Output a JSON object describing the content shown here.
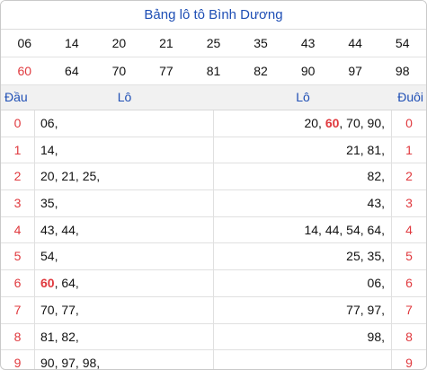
{
  "title": "Bảng lô tô Bình Dương",
  "numbers_row1": [
    "06",
    "14",
    "20",
    "21",
    "25",
    "35",
    "43",
    "44",
    "54"
  ],
  "numbers_row2": [
    "60",
    "64",
    "70",
    "77",
    "81",
    "82",
    "90",
    "97",
    "98"
  ],
  "highlight_color": "#e0393e",
  "header": {
    "dau": "Đầu",
    "lo_left": "Lô",
    "lo_right": "Lô",
    "duoi": "Đuôi"
  },
  "rows": [
    {
      "dau": "0",
      "left": [
        "06,"
      ],
      "right": [
        "20,",
        "60",
        ",",
        "70,",
        "90,"
      ],
      "duoi": "0"
    },
    {
      "dau": "1",
      "left": [
        "14,"
      ],
      "right": [
        "21,",
        "81,"
      ],
      "duoi": "1"
    },
    {
      "dau": "2",
      "left": [
        "20,",
        "21,",
        "25,"
      ],
      "right": [
        "82,"
      ],
      "duoi": "2"
    },
    {
      "dau": "3",
      "left": [
        "35,"
      ],
      "right": [
        "43,"
      ],
      "duoi": "3"
    },
    {
      "dau": "4",
      "left": [
        "43,",
        "44,"
      ],
      "right": [
        "14,",
        "44,",
        "54,",
        "64,"
      ],
      "duoi": "4"
    },
    {
      "dau": "5",
      "left": [
        "54,"
      ],
      "right": [
        "25,",
        "35,"
      ],
      "duoi": "5"
    },
    {
      "dau": "6",
      "left": [
        "60",
        ",",
        "64,"
      ],
      "right": [
        "06,"
      ],
      "duoi": "6"
    },
    {
      "dau": "7",
      "left": [
        "70,",
        "77,"
      ],
      "right": [
        "77,",
        "97,"
      ],
      "duoi": "7"
    },
    {
      "dau": "8",
      "left": [
        "81,",
        "82,"
      ],
      "right": [
        "98,"
      ],
      "duoi": "8"
    },
    {
      "dau": "9",
      "left": [
        "90,",
        "97,",
        "98,"
      ],
      "right": [],
      "duoi": "9"
    }
  ]
}
